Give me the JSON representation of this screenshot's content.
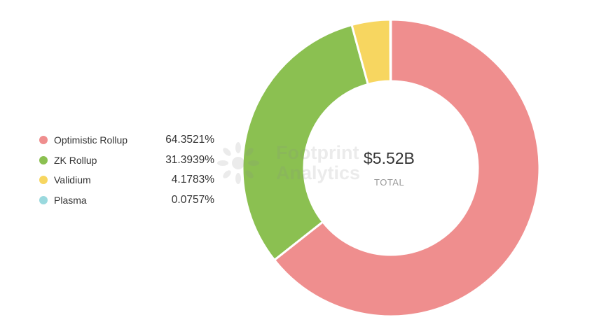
{
  "chart_data": {
    "type": "pie",
    "variant": "donut",
    "categories": [
      "Optimistic Rollup",
      "ZK Rollup",
      "Validium",
      "Plasma"
    ],
    "values": [
      64.3521,
      31.3939,
      4.1783,
      0.0757
    ],
    "value_labels": [
      "64.3521%",
      "31.3939%",
      "4.1783%",
      "0.0757%"
    ],
    "colors": [
      "#ef8e8e",
      "#8bc051",
      "#f7d660",
      "#9ad9de"
    ],
    "center": {
      "value": "$5.52B",
      "label": "TOTAL"
    },
    "legend_position": "left",
    "start_angle_deg": 0,
    "direction": "clockwise"
  },
  "watermark": {
    "brand": "Footprint",
    "brand_line2": "Analytics",
    "icon": "footprint-logo-icon"
  }
}
